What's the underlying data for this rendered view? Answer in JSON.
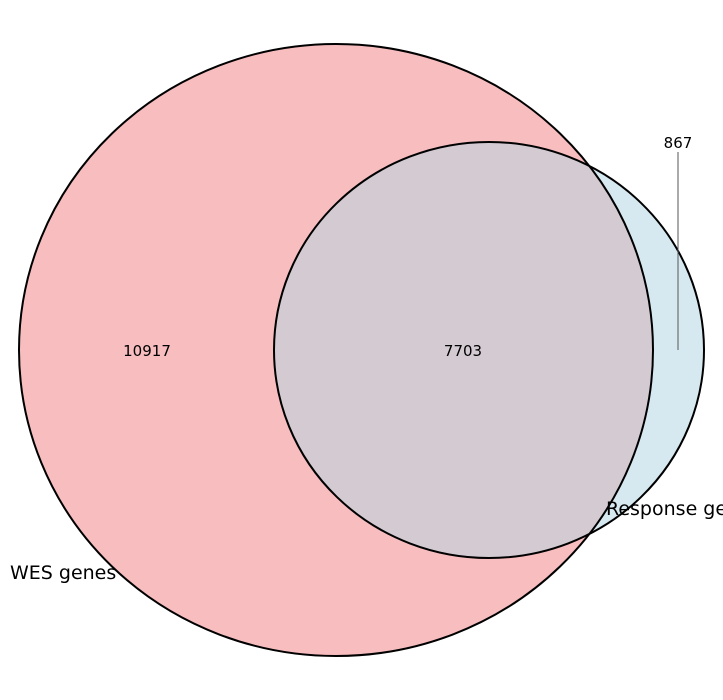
{
  "venn": {
    "sets": [
      {
        "label": "WES genes",
        "color": "#f7bdbf"
      },
      {
        "label": "Response genes",
        "color": "#d6e9f0"
      }
    ],
    "overlap_color": "#d3cad2",
    "outline_color": "#000000",
    "counts": {
      "wes_only": "10917",
      "both": "7703",
      "response_only": "867"
    }
  }
}
